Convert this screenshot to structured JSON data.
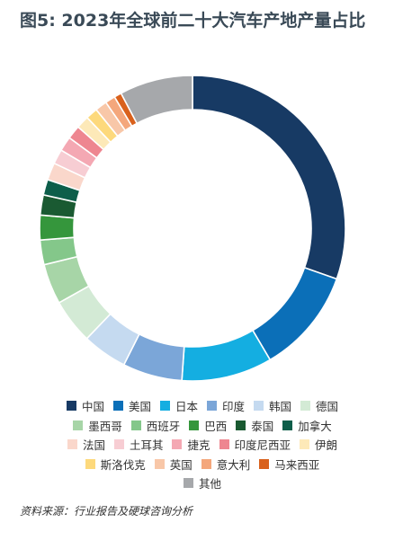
{
  "title": "图5: 2023年全球前二十大汽车产地产量占比",
  "source": "资料来源：行业报告及硬球咨询分析",
  "chart_data": {
    "type": "doughnut",
    "title": "图5: 2023年全球前二十大汽车产地产量占比",
    "start_angle_deg": 0,
    "direction": "clockwise",
    "legend_position": "bottom",
    "series": [
      {
        "name": "中国",
        "value": 31.4,
        "color": "#173a64"
      },
      {
        "name": "美国",
        "value": 11.5,
        "color": "#0b6fb8"
      },
      {
        "name": "日本",
        "value": 9.9,
        "color": "#14aee1"
      },
      {
        "name": "印度",
        "value": 6.5,
        "color": "#7ba6d8"
      },
      {
        "name": "韩国",
        "value": 4.9,
        "color": "#c5daf0"
      },
      {
        "name": "德国",
        "value": 4.9,
        "color": "#d3ead5"
      },
      {
        "name": "墨西哥",
        "value": 4.4,
        "color": "#a7d5a7"
      },
      {
        "name": "西班牙",
        "value": 2.7,
        "color": "#84c78a"
      },
      {
        "name": "巴西",
        "value": 2.7,
        "color": "#35963c"
      },
      {
        "name": "泰国",
        "value": 2.2,
        "color": "#1a5a32"
      },
      {
        "name": "加拿大",
        "value": 1.7,
        "color": "#0d5e4a"
      },
      {
        "name": "法国",
        "value": 1.9,
        "color": "#fad7cb"
      },
      {
        "name": "土耳其",
        "value": 1.6,
        "color": "#f7cdd3"
      },
      {
        "name": "捷克",
        "value": 1.6,
        "color": "#f4a8b3"
      },
      {
        "name": "印度尼西亚",
        "value": 1.5,
        "color": "#ee8690"
      },
      {
        "name": "伊朗",
        "value": 1.4,
        "color": "#fde9b8"
      },
      {
        "name": "斯洛伐克",
        "value": 1.3,
        "color": "#fdd97c"
      },
      {
        "name": "英国",
        "value": 1.3,
        "color": "#f8c7a8"
      },
      {
        "name": "意大利",
        "value": 1.1,
        "color": "#f4a77c"
      },
      {
        "name": "马来西亚",
        "value": 0.8,
        "color": "#d9611c"
      },
      {
        "name": "其他",
        "value": 8.0,
        "color": "#a6a8ab"
      }
    ]
  }
}
